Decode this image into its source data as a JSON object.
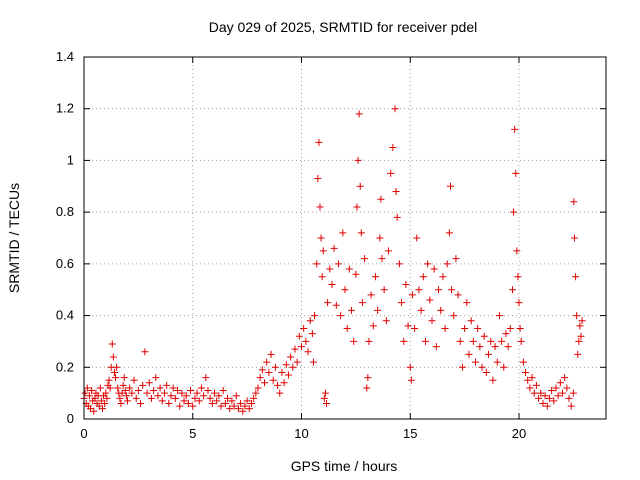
{
  "chart_data": {
    "type": "scatter",
    "title": "Day 029 of 2025, SRMTID for receiver pdel",
    "xlabel": "GPS time / hours",
    "ylabel": "SRMTID / TECUs",
    "xlim": [
      0,
      24
    ],
    "ylim": [
      0,
      1.4
    ],
    "xticks": [
      "0",
      "5",
      "10",
      "15",
      "20"
    ],
    "xtick_values": [
      0,
      5,
      10,
      15,
      20
    ],
    "yticks": [
      "0",
      "0.2",
      "0.4",
      "0.6",
      "0.8",
      "1",
      "1.2",
      "1.4"
    ],
    "ytick_values": [
      0,
      0.2,
      0.4,
      0.6,
      0.8,
      1.0,
      1.2,
      1.4
    ],
    "grid": true,
    "marker": "+",
    "color": "#e00000",
    "series": [
      {
        "name": "SRMTID",
        "points": [
          [
            0.0,
            0.08
          ],
          [
            0.05,
            0.1
          ],
          [
            0.1,
            0.06
          ],
          [
            0.15,
            0.12
          ],
          [
            0.2,
            0.05
          ],
          [
            0.25,
            0.09
          ],
          [
            0.3,
            0.04
          ],
          [
            0.35,
            0.11
          ],
          [
            0.4,
            0.07
          ],
          [
            0.45,
            0.03
          ],
          [
            0.5,
            0.08
          ],
          [
            0.55,
            0.1
          ],
          [
            0.6,
            0.06
          ],
          [
            0.65,
            0.09
          ],
          [
            0.7,
            0.05
          ],
          [
            0.75,
            0.12
          ],
          [
            0.8,
            0.07
          ],
          [
            0.85,
            0.04
          ],
          [
            0.9,
            0.09
          ],
          [
            0.95,
            0.06
          ],
          [
            1.0,
            0.1
          ],
          [
            1.05,
            0.08
          ],
          [
            1.1,
            0.13
          ],
          [
            1.15,
            0.15
          ],
          [
            1.2,
            0.12
          ],
          [
            1.25,
            0.2
          ],
          [
            1.3,
            0.29
          ],
          [
            1.35,
            0.24
          ],
          [
            1.4,
            0.18
          ],
          [
            1.45,
            0.16
          ],
          [
            1.5,
            0.2
          ],
          [
            1.55,
            0.12
          ],
          [
            1.6,
            0.1
          ],
          [
            1.65,
            0.08
          ],
          [
            1.7,
            0.06
          ],
          [
            1.75,
            0.1
          ],
          [
            1.8,
            0.13
          ],
          [
            1.85,
            0.16
          ],
          [
            1.9,
            0.11
          ],
          [
            1.95,
            0.09
          ],
          [
            2.0,
            0.07
          ],
          [
            2.1,
            0.12
          ],
          [
            2.2,
            0.1
          ],
          [
            2.3,
            0.15
          ],
          [
            2.4,
            0.08
          ],
          [
            2.5,
            0.11
          ],
          [
            2.6,
            0.06
          ],
          [
            2.7,
            0.13
          ],
          [
            2.8,
            0.26
          ],
          [
            2.9,
            0.1
          ],
          [
            3.0,
            0.14
          ],
          [
            3.1,
            0.08
          ],
          [
            3.2,
            0.11
          ],
          [
            3.3,
            0.16
          ],
          [
            3.4,
            0.09
          ],
          [
            3.5,
            0.12
          ],
          [
            3.6,
            0.07
          ],
          [
            3.7,
            0.1
          ],
          [
            3.8,
            0.13
          ],
          [
            3.9,
            0.06
          ],
          [
            4.0,
            0.09
          ],
          [
            4.1,
            0.12
          ],
          [
            4.2,
            0.08
          ],
          [
            4.3,
            0.11
          ],
          [
            4.4,
            0.05
          ],
          [
            4.5,
            0.1
          ],
          [
            4.6,
            0.07
          ],
          [
            4.7,
            0.09
          ],
          [
            4.8,
            0.06
          ],
          [
            4.9,
            0.11
          ],
          [
            5.0,
            0.05
          ],
          [
            5.1,
            0.08
          ],
          [
            5.2,
            0.1
          ],
          [
            5.3,
            0.07
          ],
          [
            5.4,
            0.12
          ],
          [
            5.5,
            0.09
          ],
          [
            5.6,
            0.16
          ],
          [
            5.7,
            0.11
          ],
          [
            5.8,
            0.08
          ],
          [
            5.9,
            0.06
          ],
          [
            6.0,
            0.1
          ],
          [
            6.1,
            0.07
          ],
          [
            6.2,
            0.09
          ],
          [
            6.3,
            0.05
          ],
          [
            6.4,
            0.11
          ],
          [
            6.5,
            0.06
          ],
          [
            6.6,
            0.08
          ],
          [
            6.7,
            0.04
          ],
          [
            6.8,
            0.07
          ],
          [
            6.9,
            0.05
          ],
          [
            7.0,
            0.09
          ],
          [
            7.1,
            0.04
          ],
          [
            7.2,
            0.06
          ],
          [
            7.3,
            0.03
          ],
          [
            7.4,
            0.05
          ],
          [
            7.5,
            0.07
          ],
          [
            7.6,
            0.04
          ],
          [
            7.7,
            0.06
          ],
          [
            7.8,
            0.08
          ],
          [
            7.9,
            0.1
          ],
          [
            8.0,
            0.12
          ],
          [
            8.1,
            0.16
          ],
          [
            8.2,
            0.19
          ],
          [
            8.3,
            0.14
          ],
          [
            8.4,
            0.22
          ],
          [
            8.5,
            0.18
          ],
          [
            8.6,
            0.25
          ],
          [
            8.7,
            0.15
          ],
          [
            8.8,
            0.2
          ],
          [
            8.9,
            0.13
          ],
          [
            9.0,
            0.1
          ],
          [
            9.1,
            0.18
          ],
          [
            9.2,
            0.14
          ],
          [
            9.3,
            0.21
          ],
          [
            9.4,
            0.17
          ],
          [
            9.5,
            0.24
          ],
          [
            9.6,
            0.2
          ],
          [
            9.7,
            0.27
          ],
          [
            9.8,
            0.22
          ],
          [
            9.9,
            0.32
          ],
          [
            10.0,
            0.28
          ],
          [
            10.1,
            0.35
          ],
          [
            10.2,
            0.3
          ],
          [
            10.3,
            0.26
          ],
          [
            10.4,
            0.38
          ],
          [
            10.5,
            0.33
          ],
          [
            10.55,
            0.22
          ],
          [
            10.6,
            0.4
          ],
          [
            10.7,
            0.6
          ],
          [
            10.75,
            0.93
          ],
          [
            10.8,
            1.07
          ],
          [
            10.85,
            0.82
          ],
          [
            10.9,
            0.7
          ],
          [
            10.95,
            0.55
          ],
          [
            11.0,
            0.65
          ],
          [
            11.05,
            0.08
          ],
          [
            11.1,
            0.1
          ],
          [
            11.15,
            0.06
          ],
          [
            11.2,
            0.45
          ],
          [
            11.3,
            0.58
          ],
          [
            11.4,
            0.52
          ],
          [
            11.5,
            0.66
          ],
          [
            11.6,
            0.44
          ],
          [
            11.7,
            0.6
          ],
          [
            11.8,
            0.4
          ],
          [
            11.9,
            0.72
          ],
          [
            12.0,
            0.5
          ],
          [
            12.1,
            0.35
          ],
          [
            12.2,
            0.58
          ],
          [
            12.3,
            0.42
          ],
          [
            12.4,
            0.3
          ],
          [
            12.5,
            0.56
          ],
          [
            12.55,
            0.82
          ],
          [
            12.6,
            1.0
          ],
          [
            12.65,
            1.18
          ],
          [
            12.7,
            0.9
          ],
          [
            12.75,
            0.72
          ],
          [
            12.8,
            0.45
          ],
          [
            12.9,
            0.62
          ],
          [
            13.0,
            0.12
          ],
          [
            13.05,
            0.16
          ],
          [
            13.1,
            0.3
          ],
          [
            13.2,
            0.48
          ],
          [
            13.3,
            0.36
          ],
          [
            13.4,
            0.55
          ],
          [
            13.5,
            0.42
          ],
          [
            13.6,
            0.7
          ],
          [
            13.65,
            0.85
          ],
          [
            13.7,
            0.62
          ],
          [
            13.8,
            0.5
          ],
          [
            13.9,
            0.38
          ],
          [
            14.0,
            0.65
          ],
          [
            14.1,
            0.95
          ],
          [
            14.2,
            1.05
          ],
          [
            14.3,
            1.2
          ],
          [
            14.35,
            0.88
          ],
          [
            14.4,
            0.78
          ],
          [
            14.5,
            0.6
          ],
          [
            14.6,
            0.45
          ],
          [
            14.7,
            0.3
          ],
          [
            14.8,
            0.52
          ],
          [
            14.9,
            0.36
          ],
          [
            15.0,
            0.2
          ],
          [
            15.05,
            0.15
          ],
          [
            15.1,
            0.48
          ],
          [
            15.2,
            0.35
          ],
          [
            15.3,
            0.7
          ],
          [
            15.4,
            0.5
          ],
          [
            15.5,
            0.42
          ],
          [
            15.6,
            0.55
          ],
          [
            15.7,
            0.3
          ],
          [
            15.8,
            0.6
          ],
          [
            15.9,
            0.46
          ],
          [
            16.0,
            0.38
          ],
          [
            16.1,
            0.58
          ],
          [
            16.2,
            0.28
          ],
          [
            16.3,
            0.5
          ],
          [
            16.4,
            0.42
          ],
          [
            16.5,
            0.55
          ],
          [
            16.6,
            0.35
          ],
          [
            16.7,
            0.6
          ],
          [
            16.8,
            0.72
          ],
          [
            16.85,
            0.9
          ],
          [
            16.9,
            0.5
          ],
          [
            17.0,
            0.4
          ],
          [
            17.1,
            0.62
          ],
          [
            17.2,
            0.48
          ],
          [
            17.3,
            0.3
          ],
          [
            17.4,
            0.2
          ],
          [
            17.5,
            0.35
          ],
          [
            17.6,
            0.45
          ],
          [
            17.7,
            0.25
          ],
          [
            17.8,
            0.38
          ],
          [
            17.9,
            0.3
          ],
          [
            18.0,
            0.22
          ],
          [
            18.1,
            0.35
          ],
          [
            18.2,
            0.28
          ],
          [
            18.3,
            0.2
          ],
          [
            18.4,
            0.32
          ],
          [
            18.5,
            0.18
          ],
          [
            18.6,
            0.25
          ],
          [
            18.7,
            0.3
          ],
          [
            18.8,
            0.15
          ],
          [
            18.9,
            0.28
          ],
          [
            19.0,
            0.22
          ],
          [
            19.1,
            0.4
          ],
          [
            19.2,
            0.3
          ],
          [
            19.3,
            0.2
          ],
          [
            19.4,
            0.33
          ],
          [
            19.5,
            0.28
          ],
          [
            19.6,
            0.35
          ],
          [
            19.7,
            0.5
          ],
          [
            19.75,
            0.8
          ],
          [
            19.8,
            1.12
          ],
          [
            19.85,
            0.95
          ],
          [
            19.9,
            0.65
          ],
          [
            19.95,
            0.55
          ],
          [
            20.0,
            0.45
          ],
          [
            20.05,
            0.35
          ],
          [
            20.1,
            0.3
          ],
          [
            20.2,
            0.22
          ],
          [
            20.3,
            0.18
          ],
          [
            20.4,
            0.15
          ],
          [
            20.5,
            0.12
          ],
          [
            20.6,
            0.16
          ],
          [
            20.7,
            0.1
          ],
          [
            20.8,
            0.13
          ],
          [
            20.9,
            0.08
          ],
          [
            21.0,
            0.1
          ],
          [
            21.1,
            0.06
          ],
          [
            21.2,
            0.09
          ],
          [
            21.3,
            0.05
          ],
          [
            21.4,
            0.08
          ],
          [
            21.5,
            0.11
          ],
          [
            21.6,
            0.07
          ],
          [
            21.7,
            0.12
          ],
          [
            21.8,
            0.09
          ],
          [
            21.9,
            0.14
          ],
          [
            22.0,
            0.1
          ],
          [
            22.1,
            0.16
          ],
          [
            22.2,
            0.12
          ],
          [
            22.3,
            0.08
          ],
          [
            22.4,
            0.05
          ],
          [
            22.5,
            0.1
          ],
          [
            22.52,
            0.84
          ],
          [
            22.55,
            0.7
          ],
          [
            22.6,
            0.55
          ],
          [
            22.65,
            0.4
          ],
          [
            22.7,
            0.25
          ],
          [
            22.75,
            0.3
          ],
          [
            22.8,
            0.36
          ],
          [
            22.85,
            0.32
          ],
          [
            22.9,
            0.38
          ]
        ]
      }
    ]
  }
}
